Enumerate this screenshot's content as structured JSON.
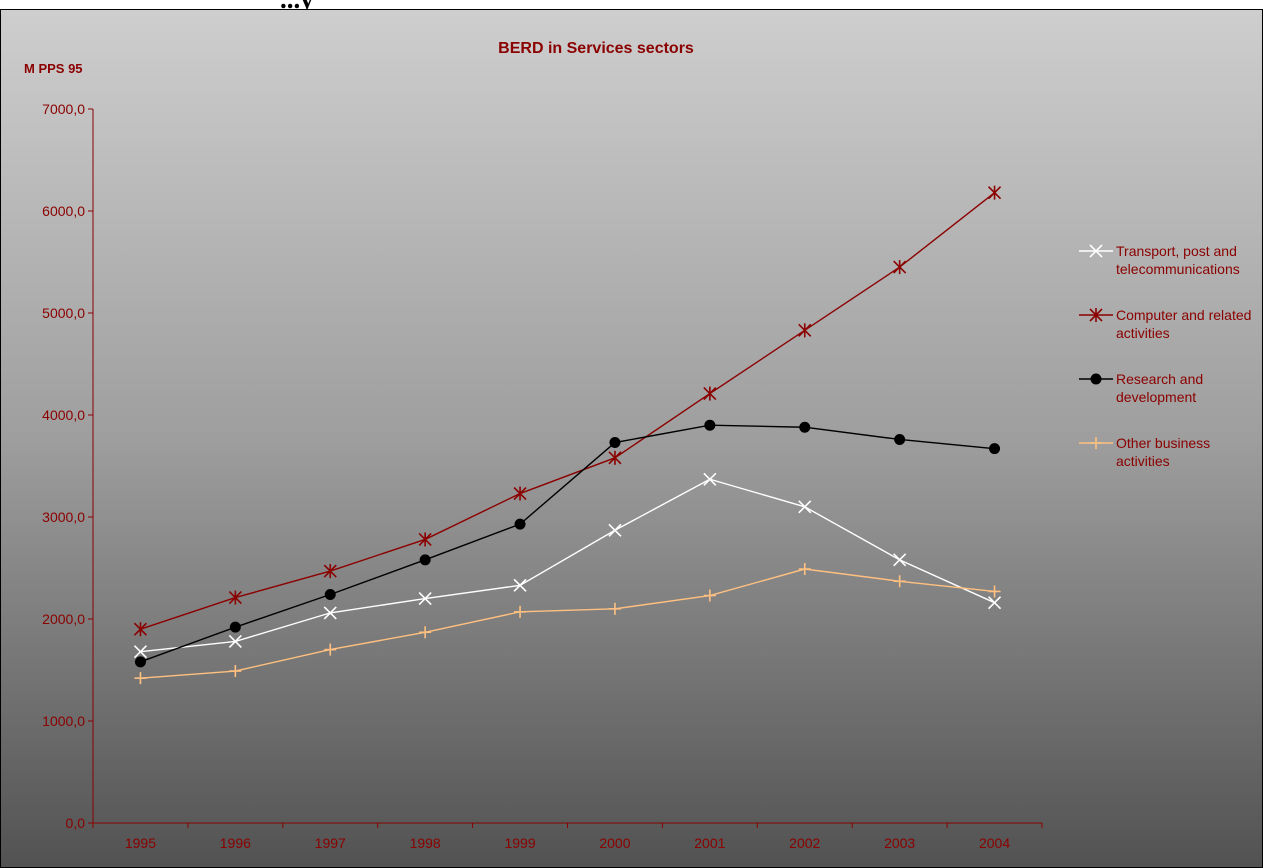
{
  "page": {
    "heading": "...y"
  },
  "colors": {
    "text": "#8b0000",
    "axis": "#8b0000"
  },
  "chart_data": {
    "type": "line",
    "title": "BERD in Services sectors",
    "ylabel": "M PPS 95",
    "xlabel": "",
    "categories": [
      "1995",
      "1996",
      "1997",
      "1998",
      "1999",
      "2000",
      "2001",
      "2002",
      "2003",
      "2004"
    ],
    "ylim": [
      0,
      7000
    ],
    "y_ticks": [
      "0,0",
      "1000,0",
      "2000,0",
      "3000,0",
      "4000,0",
      "5000,0",
      "6000,0",
      "7000,0"
    ],
    "grid": false,
    "legend_position": "right",
    "series": [
      {
        "name": "Transport, post and telecommunications",
        "legend_lines": [
          "Transport, post and",
          "telecommunications"
        ],
        "color": "#ffffff",
        "marker": "x",
        "values": [
          1680,
          1780,
          2060,
          2200,
          2330,
          2870,
          3370,
          3100,
          2580,
          2160
        ]
      },
      {
        "name": "Computer and related activities",
        "legend_lines": [
          "Computer and related",
          "activities"
        ],
        "color": "#8b0000",
        "marker": "star",
        "values": [
          1900,
          2210,
          2470,
          2780,
          3230,
          3580,
          4210,
          4830,
          5450,
          6180
        ]
      },
      {
        "name": "Research and development",
        "legend_lines": [
          "Research and",
          "development"
        ],
        "color": "#000000",
        "marker": "circle",
        "values": [
          1580,
          1920,
          2240,
          2580,
          2930,
          3730,
          3900,
          3880,
          3760,
          3670
        ]
      },
      {
        "name": "Other business activities",
        "legend_lines": [
          "Other business",
          "activities"
        ],
        "color": "#ffc080",
        "marker": "plus",
        "values": [
          1420,
          1490,
          1700,
          1870,
          2070,
          2100,
          2230,
          2490,
          2370,
          2270
        ]
      }
    ]
  }
}
